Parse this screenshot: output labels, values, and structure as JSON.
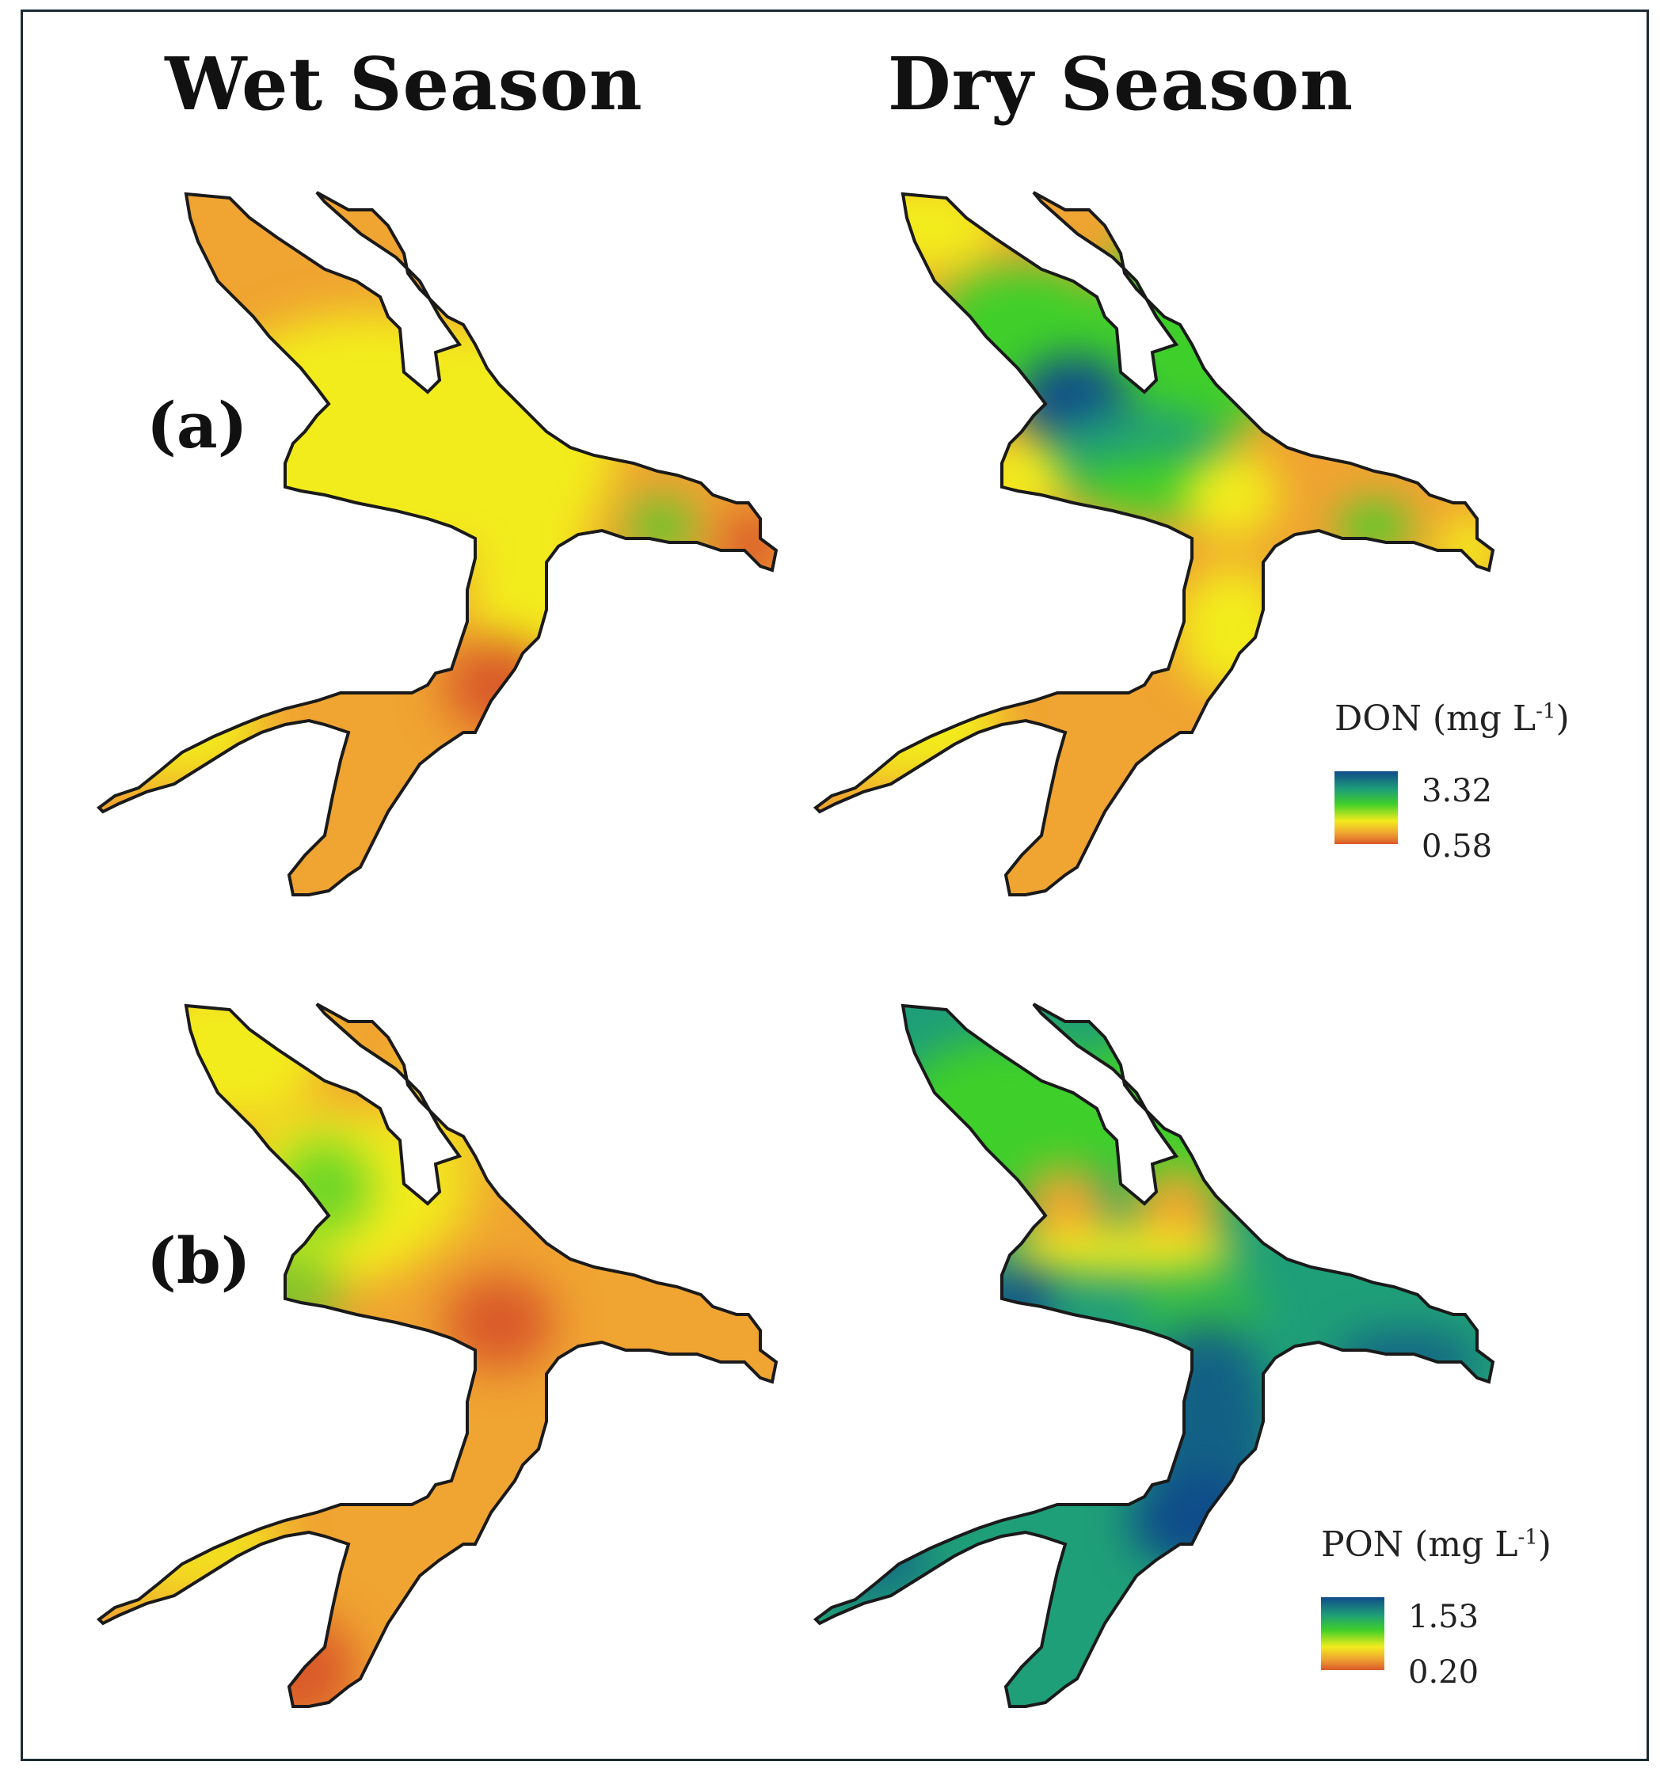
{
  "titles": {
    "wet": "Wet Season",
    "dry": "Dry Season"
  },
  "row_labels": {
    "a": "(a)",
    "b": "(b)"
  },
  "legends": {
    "don": {
      "param": "DON",
      "unit_pre": " (mg L",
      "unit_sup": "-1",
      "unit_post": ")",
      "max": "3.32",
      "min": "0.58"
    },
    "pon": {
      "param": "PON",
      "unit_pre": " (mg L",
      "unit_sup": "-1",
      "unit_post": ")",
      "max": "1.53",
      "min": "0.20"
    }
  },
  "colors": {
    "blue": "#0f4c8a",
    "teal": "#1f9f78",
    "green": "#3fcf2a",
    "yellow": "#f2ec1c",
    "orange": "#f0a431",
    "red": "#d95a2a",
    "outline": "#1a1a1a"
  }
}
